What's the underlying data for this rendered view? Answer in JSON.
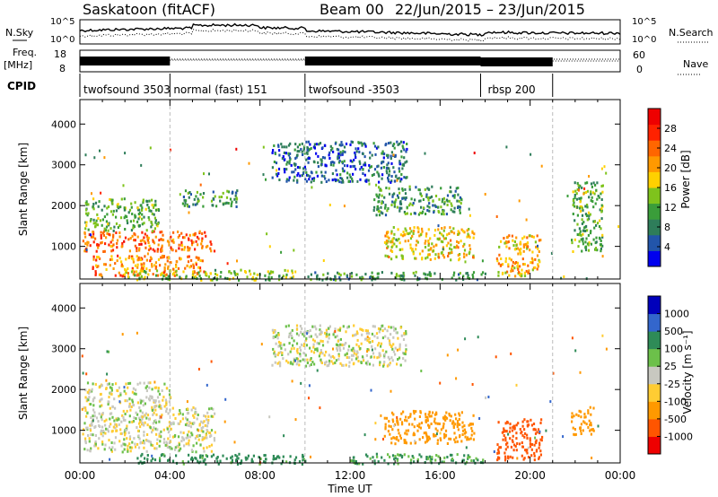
{
  "header": {
    "title": "Saskatoon (fitACF)",
    "beam": "Beam 00",
    "date_range": "22/Jun/2015 – 23/Jun/2015"
  },
  "strip_labels": {
    "nsky": "N.Sky",
    "freq": "Freq.",
    "freq_unit": "[MHz]",
    "cpid": "CPID",
    "nsearch": "N.Search",
    "nave": "Nave"
  },
  "strip_ticks": {
    "noise_left_top": "10^5",
    "noise_left_bottom": "10^0",
    "noise_right_top": "10^5",
    "noise_right_bottom": "10^0",
    "freq_top": "18",
    "freq_bottom": "8",
    "nave_top": "60",
    "nave_bottom": "0"
  },
  "cpid_segments": [
    {
      "label": "twofsound 3503",
      "start_h": 0.0,
      "end_h": 4.0
    },
    {
      "label": "normal (fast) 151",
      "start_h": 4.0,
      "end_h": 10.0
    },
    {
      "label": "twofsound -3503",
      "start_h": 10.0,
      "end_h": 17.8
    },
    {
      "label": "rbsp 200",
      "start_h": 17.8,
      "end_h": 21.0
    }
  ],
  "colors": {
    "power_scale": [
      "#0000ee",
      "#2255aa",
      "#2e7d5a",
      "#3a9d3a",
      "#7fc31c",
      "#ffd000",
      "#ff9900",
      "#ff6600",
      "#ff2200",
      "#ee0000"
    ],
    "velocity_scale": [
      "#ee0000",
      "#ff5500",
      "#ff9900",
      "#ffcc33",
      "#c8c8c0",
      "#6cc04a",
      "#2e8b57",
      "#3366cc",
      "#0000bb"
    ]
  },
  "chart_data": [
    {
      "type": "heatmap",
      "name": "power",
      "xlabel": "",
      "ylabel": "Slant Range [km]",
      "xlim_hours": [
        0,
        24
      ],
      "ylim": [
        200,
        4600
      ],
      "y_ticks": [
        "1000",
        "2000",
        "3000",
        "4000"
      ],
      "colorbar_label": "Power [dB]",
      "colorbar_ticks": [
        "4",
        "8",
        "12",
        "16",
        "20",
        "24",
        "28"
      ],
      "colorbar_range": [
        0,
        32
      ],
      "dashed_lines_h": [
        4,
        10,
        21
      ],
      "features": [
        {
          "x": [
            0.1,
            6.0
          ],
          "y": [
            900,
            1400
          ],
          "level": 24
        },
        {
          "x": [
            0.5,
            5.5
          ],
          "y": [
            300,
            800
          ],
          "level": 22
        },
        {
          "x": [
            0.2,
            3.5
          ],
          "y": [
            1400,
            2200
          ],
          "level": 12
        },
        {
          "x": [
            2.0,
            9.5
          ],
          "y": [
            200,
            450
          ],
          "level": 14
        },
        {
          "x": [
            4.5,
            7.0
          ],
          "y": [
            2000,
            2400
          ],
          "level": 10
        },
        {
          "x": [
            8.5,
            14.5
          ],
          "y": [
            2600,
            3600
          ],
          "level": 6
        },
        {
          "x": [
            10.0,
            18.0
          ],
          "y": [
            200,
            400
          ],
          "level": 10
        },
        {
          "x": [
            13.5,
            17.5
          ],
          "y": [
            700,
            1500
          ],
          "level": 18
        },
        {
          "x": [
            13.0,
            17.0
          ],
          "y": [
            1800,
            2500
          ],
          "level": 10
        },
        {
          "x": [
            18.5,
            20.5
          ],
          "y": [
            300,
            1300
          ],
          "level": 20
        },
        {
          "x": [
            21.8,
            23.2
          ],
          "y": [
            900,
            2600
          ],
          "level": 12
        }
      ]
    },
    {
      "type": "heatmap",
      "name": "velocity",
      "xlabel": "Time UT",
      "ylabel": "Slant Range [km]",
      "xlim_hours": [
        0,
        24
      ],
      "ylim": [
        200,
        4600
      ],
      "y_ticks": [
        "1000",
        "2000",
        "3000",
        "4000"
      ],
      "x_ticks": [
        "00:00",
        "04:00",
        "08:00",
        "12:00",
        "16:00",
        "20:00",
        "00:00"
      ],
      "colorbar_label": "Velocity [m s⁻¹]",
      "colorbar_ticks": [
        "-1000",
        "-500",
        "-100",
        "-25",
        "25",
        "100",
        "500",
        "1000"
      ],
      "dashed_lines_h": [
        4,
        10,
        21
      ],
      "features": [
        {
          "x": [
            0.1,
            6.0
          ],
          "y": [
            500,
            1600
          ],
          "vel": 0
        },
        {
          "x": [
            0.2,
            4.0
          ],
          "y": [
            1600,
            2200
          ],
          "vel": 0
        },
        {
          "x": [
            2.5,
            10.0
          ],
          "y": [
            200,
            450
          ],
          "vel": 150
        },
        {
          "x": [
            8.5,
            14.5
          ],
          "y": [
            2600,
            3600
          ],
          "vel": 0
        },
        {
          "x": [
            12.0,
            18.0
          ],
          "y": [
            200,
            450
          ],
          "vel": 120
        },
        {
          "x": [
            13.5,
            17.5
          ],
          "y": [
            700,
            1500
          ],
          "vel": -300
        },
        {
          "x": [
            18.5,
            20.5
          ],
          "y": [
            300,
            1300
          ],
          "vel": -800
        },
        {
          "x": [
            21.8,
            22.8
          ],
          "y": [
            900,
            1600
          ],
          "vel": -200
        }
      ]
    }
  ]
}
